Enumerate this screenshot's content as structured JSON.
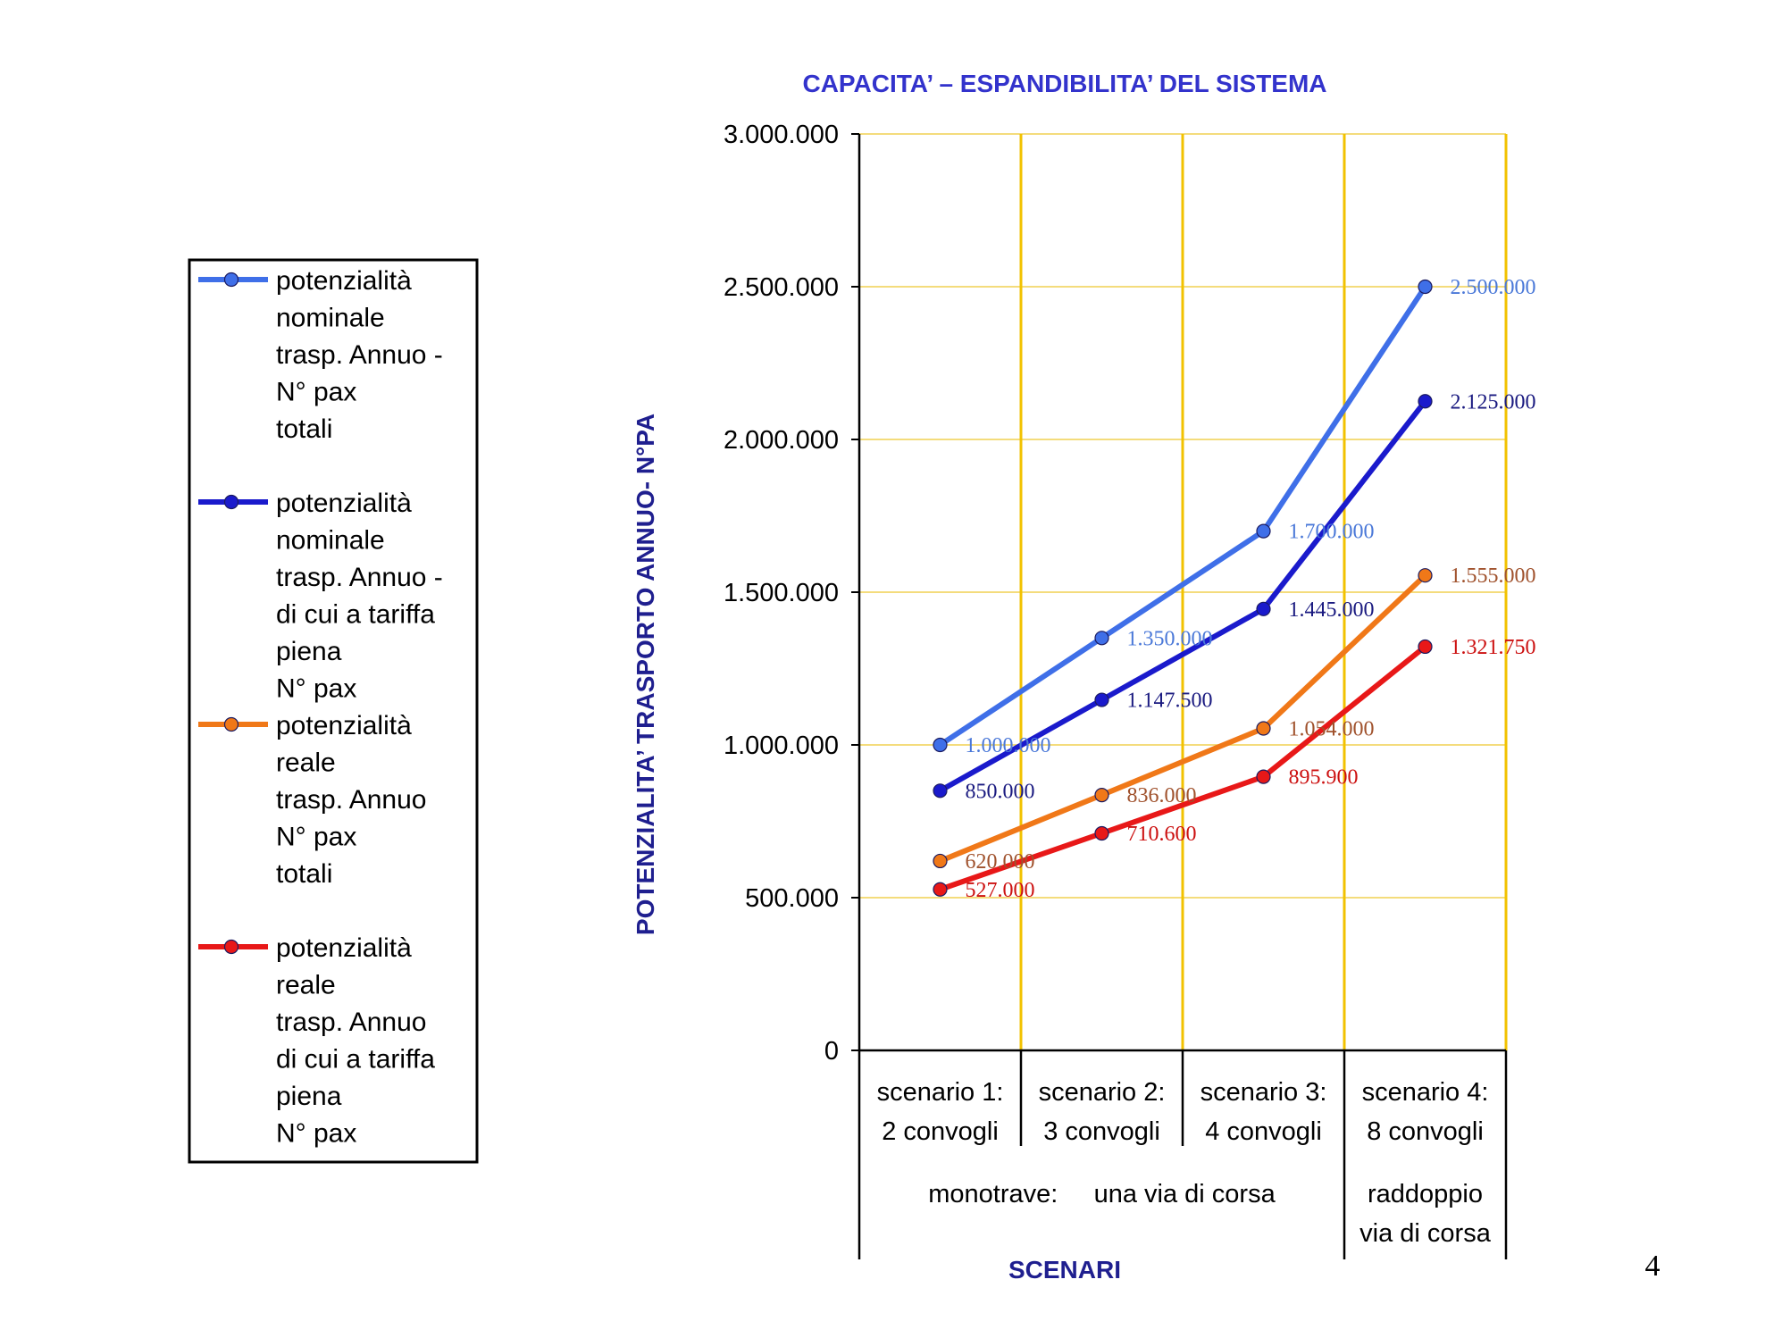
{
  "page_number": "4",
  "chart_data": {
    "type": "line",
    "title": "CAPACITA’ – ESPANDIBILITA’ DEL SISTEMA",
    "xlabel": "SCENARI",
    "ylabel": "POTENZIALITA’ TRASPORTO ANNUO- N°PA",
    "ylim": [
      0,
      3000000
    ],
    "y_ticks": [
      {
        "value": 0,
        "label": "0"
      },
      {
        "value": 500000,
        "label": "500.000"
      },
      {
        "value": 1000000,
        "label": "1.000.000"
      },
      {
        "value": 1500000,
        "label": "1.500.000"
      },
      {
        "value": 2000000,
        "label": "2.000.000"
      },
      {
        "value": 2500000,
        "label": "2.500.000"
      },
      {
        "value": 3000000,
        "label": "3.000.000"
      }
    ],
    "categories": [
      [
        "scenario 1:",
        "2 convogli"
      ],
      [
        "scenario 2:",
        "3 convogli"
      ],
      [
        "scenario 3:",
        "4 convogli"
      ],
      [
        "scenario 4:",
        "8 convogli"
      ]
    ],
    "groups": [
      {
        "lines": [
          "monotrave:     una via di corsa"
        ],
        "span": [
          0,
          2
        ]
      },
      {
        "lines": [
          "raddoppio",
          "via di corsa"
        ],
        "span": [
          3,
          3
        ]
      }
    ],
    "grid": true,
    "legend_position": "left",
    "colors": {
      "gridline": "#f0d050",
      "vertical_grid": "#f2c200",
      "axis": "#000000"
    },
    "series": [
      {
        "name": "potenzialità nominale trasp. Annuo - N° pax totali",
        "legend_lines": [
          "potenzialità",
          "nominale",
          "trasp. Annuo -",
          "N° pax",
          "totali"
        ],
        "color": "#3f6fe8",
        "label_color": "#4a78d8",
        "values": [
          1000000,
          1350000,
          1700000,
          2500000
        ],
        "labels": [
          "1.000.000",
          "1.350.000",
          "1.700.000",
          "2.500.000"
        ]
      },
      {
        "name": "potenzialità nominale trasp. Annuo - di cui a tariffa piena N° pax",
        "legend_lines": [
          "potenzialità",
          "nominale",
          "trasp. Annuo -",
          "di cui a tariffa",
          "piena",
          "N° pax"
        ],
        "color": "#1a1acc",
        "label_color": "#1a1a80",
        "values": [
          850000,
          1147500,
          1445000,
          2125000
        ],
        "labels": [
          "850.000",
          "1.147.500",
          "1.445.000",
          "2.125.000"
        ]
      },
      {
        "name": "potenzialità reale trasp. Annuo N° pax totali",
        "legend_lines": [
          "potenzialità",
          "reale",
          "trasp. Annuo",
          "N° pax",
          "totali"
        ],
        "color": "#f07818",
        "label_color": "#a0522d",
        "values": [
          620000,
          836000,
          1054000,
          1555000
        ],
        "labels": [
          "620.000",
          "836.000",
          "1.054.000",
          "1.555.000"
        ]
      },
      {
        "name": "potenzialità reale trasp. Annuo di cui a tariffa piena N° pax",
        "legend_lines": [
          "potenzialità",
          "reale",
          "trasp. Annuo",
          "di cui a tariffa",
          "piena",
          "N° pax"
        ],
        "color": "#e81818",
        "label_color": "#cc1010",
        "values": [
          527000,
          710600,
          895900,
          1321750
        ],
        "labels": [
          "527.000",
          "710.600",
          "895.900",
          "1.321.750"
        ]
      }
    ]
  }
}
